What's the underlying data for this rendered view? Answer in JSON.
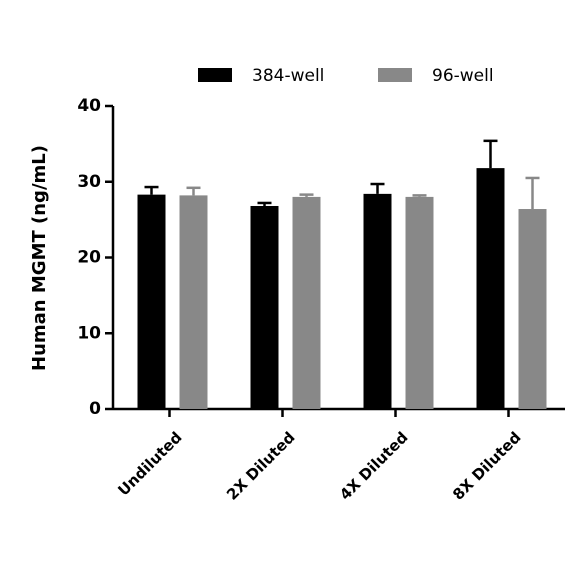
{
  "chart_data": {
    "type": "bar",
    "y_label": "Human MGMT (ng/mL)",
    "categories": [
      "Undiluted",
      "2X Diluted",
      "4X Diluted",
      "8X Diluted"
    ],
    "series": [
      {
        "name": "384-well",
        "color": "#000000",
        "values": [
          28.3,
          26.8,
          28.4,
          31.8
        ],
        "errors": [
          1.0,
          0.4,
          1.3,
          3.6
        ]
      },
      {
        "name": "96-well",
        "color": "#888888",
        "values": [
          28.2,
          28.0,
          28.0,
          26.4
        ],
        "errors": [
          1.0,
          0.3,
          0.2,
          4.1
        ]
      }
    ],
    "ylim": [
      0,
      40
    ],
    "yticks": [
      0,
      10,
      20,
      30,
      40
    ]
  }
}
